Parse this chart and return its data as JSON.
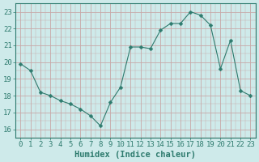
{
  "x": [
    0,
    1,
    2,
    3,
    4,
    5,
    6,
    7,
    8,
    9,
    10,
    11,
    12,
    13,
    14,
    15,
    16,
    17,
    18,
    19,
    20,
    21,
    22,
    23
  ],
  "y": [
    19.9,
    19.5,
    18.2,
    18.0,
    17.7,
    17.5,
    17.2,
    16.8,
    16.2,
    17.6,
    18.5,
    20.9,
    20.9,
    20.8,
    21.9,
    22.3,
    22.3,
    23.0,
    22.8,
    22.2,
    19.6,
    21.3,
    18.3,
    18.0
  ],
  "line_color": "#2e7b6e",
  "bg_color": "#ceeaea",
  "grid_color": "#c8a8a8",
  "xlabel": "Humidex (Indice chaleur)",
  "ylim": [
    15.5,
    23.5
  ],
  "xlim": [
    -0.5,
    23.5
  ],
  "yticks": [
    16,
    17,
    18,
    19,
    20,
    21,
    22,
    23
  ],
  "xticks": [
    0,
    1,
    2,
    3,
    4,
    5,
    6,
    7,
    8,
    9,
    10,
    11,
    12,
    13,
    14,
    15,
    16,
    17,
    18,
    19,
    20,
    21,
    22,
    23
  ],
  "font_size": 6.5,
  "label_fontsize": 7.5,
  "marker": "D",
  "marker_size": 2.5
}
